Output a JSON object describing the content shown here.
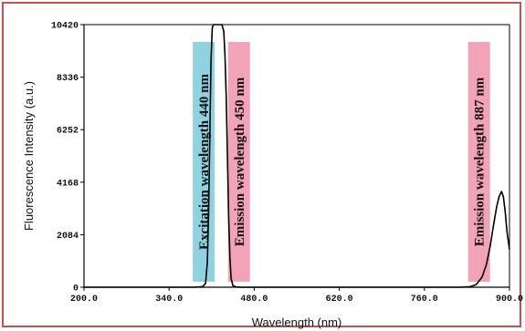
{
  "chart_data": {
    "type": "line",
    "xlabel": "Wavelength (nm)",
    "ylabel": "Fluorescence Intensity (a.u.)",
    "xlim": [
      200.0,
      900.0
    ],
    "ylim": [
      0,
      10420
    ],
    "x_ticks": [
      {
        "value": 200.0,
        "label": "200.0"
      },
      {
        "value": 340.0,
        "label": "340.0"
      },
      {
        "value": 480.0,
        "label": "480.0"
      },
      {
        "value": 620.0,
        "label": "620.0"
      },
      {
        "value": 760.0,
        "label": "760.0"
      },
      {
        "value": 900.0,
        "label": "900.0"
      }
    ],
    "y_ticks": [
      {
        "value": 0,
        "label": "0"
      },
      {
        "value": 2084,
        "label": "2084"
      },
      {
        "value": 4168,
        "label": "4168"
      },
      {
        "value": 6252,
        "label": "6252"
      },
      {
        "value": 8336,
        "label": "8336"
      },
      {
        "value": 10420,
        "label": "10420"
      }
    ],
    "grid": false,
    "line_color": "#000000",
    "series": [
      {
        "points": [
          [
            200,
            0
          ],
          [
            380,
            0
          ],
          [
            395,
            20
          ],
          [
            400,
            150
          ],
          [
            403,
            1000
          ],
          [
            405,
            3000
          ],
          [
            407,
            6000
          ],
          [
            409,
            9000
          ],
          [
            411,
            10300
          ],
          [
            413,
            10420
          ],
          [
            420,
            10420
          ],
          [
            427,
            10420
          ],
          [
            430,
            10150
          ],
          [
            432,
            9200
          ],
          [
            434,
            7500
          ],
          [
            436,
            5200
          ],
          [
            438,
            2800
          ],
          [
            440,
            1200
          ],
          [
            442,
            350
          ],
          [
            445,
            60
          ],
          [
            450,
            10
          ],
          [
            460,
            0
          ],
          [
            820,
            0
          ],
          [
            835,
            20
          ],
          [
            845,
            100
          ],
          [
            855,
            400
          ],
          [
            862,
            900
          ],
          [
            868,
            1600
          ],
          [
            874,
            2500
          ],
          [
            879,
            3200
          ],
          [
            883,
            3600
          ],
          [
            887,
            3800
          ],
          [
            890,
            3600
          ],
          [
            893,
            3000
          ],
          [
            896,
            2200
          ],
          [
            900,
            1500
          ]
        ]
      }
    ],
    "annotations": [
      {
        "text": "Excitation wavelength 440 nm",
        "x": 397,
        "background": "#8fd3e0"
      },
      {
        "text": "Emission wavelength 450 nm",
        "x": 455,
        "background": "#f2a3b8"
      },
      {
        "text": "Emission wavelength 887 nm",
        "x": 850,
        "background": "#f2a3b8"
      }
    ]
  }
}
